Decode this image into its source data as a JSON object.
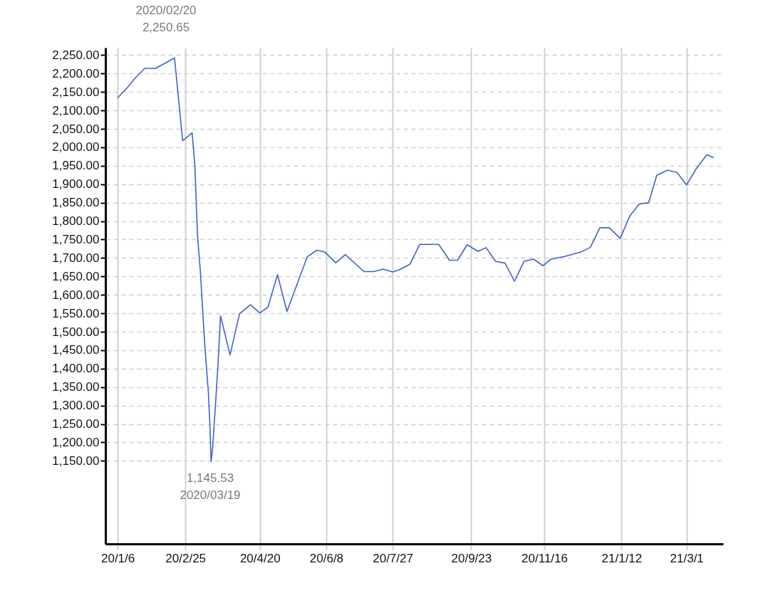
{
  "chart_data": {
    "type": "line",
    "x": [
      "2020-01-06",
      "2020-01-13",
      "2020-01-19",
      "2020-01-26",
      "2020-02-03",
      "2020-02-17",
      "2020-02-23",
      "2020-03-01",
      "2020-03-03",
      "2020-03-05",
      "2020-03-07",
      "2020-03-10",
      "2020-03-13",
      "2020-03-14",
      "2020-03-15",
      "2020-03-16",
      "2020-03-18",
      "2020-03-20",
      "2020-03-22",
      "2020-03-29",
      "2020-04-05",
      "2020-04-13",
      "2020-04-20",
      "2020-04-26",
      "2020-05-03",
      "2020-05-10",
      "2020-05-25",
      "2020-06-01",
      "2020-06-07",
      "2020-06-15",
      "2020-06-22",
      "2020-07-06",
      "2020-07-13",
      "2020-07-20",
      "2020-07-27",
      "2020-08-01",
      "2020-08-09",
      "2020-08-16",
      "2020-08-30",
      "2020-09-07",
      "2020-09-13",
      "2020-09-20",
      "2020-09-28",
      "2020-10-04",
      "2020-10-11",
      "2020-10-18",
      "2020-10-25",
      "2020-11-01",
      "2020-11-08",
      "2020-11-15",
      "2020-11-21",
      "2020-12-01",
      "2020-12-13",
      "2020-12-20",
      "2020-12-27",
      "2021-01-03",
      "2021-01-11",
      "2021-01-18",
      "2021-01-25",
      "2021-02-01",
      "2021-02-07",
      "2021-02-15",
      "2021-02-22",
      "2021-03-01",
      "2021-03-08",
      "2021-03-16",
      "2021-03-21"
    ],
    "series": [
      {
        "color": "#3f63c8",
        "values": [
          2134,
          2161,
          2188,
          2214,
          2214,
          2242,
          2018,
          2039,
          1951,
          1759,
          1668,
          1482,
          1335,
          1258,
          1148,
          1180,
          1289,
          1405,
          1543,
          1437,
          1549,
          1573,
          1551,
          1567,
          1655,
          1555,
          1703,
          1721,
          1716,
          1687,
          1709,
          1663,
          1663,
          1670,
          1662,
          1668,
          1684,
          1737,
          1737,
          1694,
          1694,
          1736,
          1718,
          1728,
          1691,
          1686,
          1637,
          1691,
          1697,
          1679,
          1697,
          1704,
          1716,
          1729,
          1782,
          1782,
          1753,
          1813,
          1846,
          1850,
          1924,
          1938,
          1932,
          1898,
          1941,
          1980,
          1972
        ]
      }
    ],
    "xlim": [
      "2019-12-28",
      "2021-03-28"
    ],
    "xticks": [
      {
        "value": "2020-01-06",
        "label": "20/1/6"
      },
      {
        "value": "2020-02-25",
        "label": "20/2/25"
      },
      {
        "value": "2020-04-20",
        "label": "20/4/20"
      },
      {
        "value": "2020-06-08",
        "label": "20/6/8"
      },
      {
        "value": "2020-07-27",
        "label": "20/7/27"
      },
      {
        "value": "2020-09-23",
        "label": "20/9/23"
      },
      {
        "value": "2020-11-16",
        "label": "20/11/16"
      },
      {
        "value": "2021-01-12",
        "label": "21/1/12"
      },
      {
        "value": "2021-03-01",
        "label": "21/3/1"
      }
    ],
    "ylim": [
      925,
      2270
    ],
    "yticks": [
      {
        "value": 1150,
        "label": "1,150.00"
      },
      {
        "value": 1200,
        "label": "1,200.00"
      },
      {
        "value": 1250,
        "label": "1,250.00"
      },
      {
        "value": 1300,
        "label": "1,300.00"
      },
      {
        "value": 1350,
        "label": "1,350.00"
      },
      {
        "value": 1400,
        "label": "1,400.00"
      },
      {
        "value": 1450,
        "label": "1,450.00"
      },
      {
        "value": 1500,
        "label": "1,500.00"
      },
      {
        "value": 1550,
        "label": "1,550.00"
      },
      {
        "value": 1600,
        "label": "1,600.00"
      },
      {
        "value": 1650,
        "label": "1,650.00"
      },
      {
        "value": 1700,
        "label": "1,700.00"
      },
      {
        "value": 1750,
        "label": "1,750.00"
      },
      {
        "value": 1800,
        "label": "1,800.00"
      },
      {
        "value": 1850,
        "label": "1,850.00"
      },
      {
        "value": 1900,
        "label": "1,900.00"
      },
      {
        "value": 1950,
        "label": "1,950.00"
      },
      {
        "value": 2000,
        "label": "2,000.00"
      },
      {
        "value": 2050,
        "label": "2,050.00"
      },
      {
        "value": 2100,
        "label": "2,100.00"
      },
      {
        "value": 2150,
        "label": "2,150.00"
      },
      {
        "value": 2200,
        "label": "2,200.00"
      },
      {
        "value": 2250,
        "label": "2,250.00"
      }
    ],
    "grid": true,
    "annotations": [
      "2020/02/20\n2,250.65",
      "1,145.53\n2020/03/19"
    ]
  }
}
